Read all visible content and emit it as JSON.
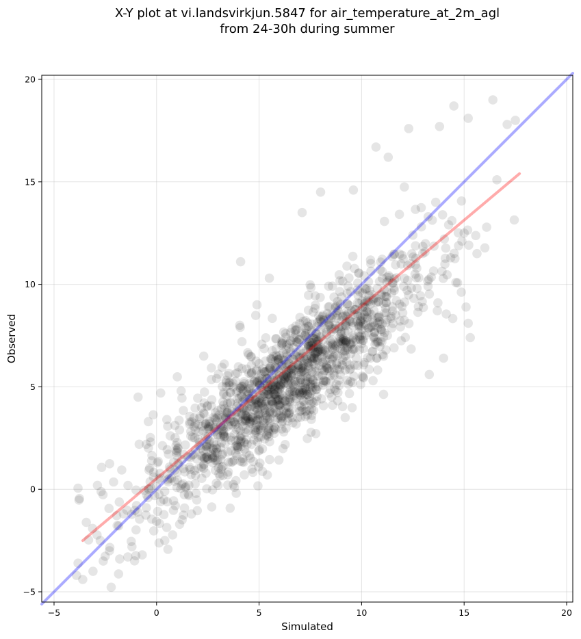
{
  "chart_data": {
    "type": "scatter",
    "title_line1": "X-Y plot at vi.landsvirkjun.5847 for air_temperature_at_2m_agl",
    "title_line2": "from 24-30h during summer",
    "xlabel": "Simulated",
    "ylabel": "Observed",
    "xlim": [
      -5.6,
      20.3
    ],
    "ylim": [
      -5.5,
      20.2
    ],
    "xticks": [
      -5,
      0,
      5,
      10,
      15,
      20
    ],
    "yticks": [
      -5,
      0,
      5,
      10,
      15,
      20
    ],
    "grid": true,
    "point_color": "#000000",
    "point_alpha": 0.1,
    "point_cloud_summary": {
      "approx_count": 1500,
      "x_range": [
        -4,
        18
      ],
      "relation": "observed ≈ 0.78 × simulated + 0.35, with scatter about ±1.5"
    },
    "points_sample": [
      [
        -3.9,
        -4.2
      ],
      [
        -3.6,
        -4.4
      ],
      [
        -3.1,
        -4.0
      ],
      [
        -2.6,
        -3.5
      ],
      [
        -2.3,
        -3.0
      ],
      [
        -1.8,
        -3.4
      ],
      [
        -1.4,
        -3.3
      ],
      [
        -1.2,
        -2.8
      ],
      [
        -0.7,
        -3.2
      ],
      [
        0.4,
        -2.5
      ],
      [
        -0.9,
        4.5
      ],
      [
        -0.4,
        3.3
      ],
      [
        0.2,
        4.7
      ],
      [
        0.5,
        3.4
      ],
      [
        1.2,
        4.8
      ],
      [
        2.3,
        6.5
      ],
      [
        4.1,
        11.1
      ],
      [
        4.9,
        9.0
      ],
      [
        5.5,
        10.3
      ],
      [
        7.1,
        13.5
      ],
      [
        8.0,
        14.5
      ],
      [
        9.6,
        14.6
      ],
      [
        10.7,
        16.7
      ],
      [
        11.3,
        16.2
      ],
      [
        12.3,
        17.6
      ],
      [
        13.8,
        17.7
      ],
      [
        14.5,
        18.7
      ],
      [
        15.2,
        18.1
      ],
      [
        16.4,
        19.0
      ],
      [
        17.5,
        18.0
      ],
      [
        17.1,
        17.8
      ],
      [
        16.6,
        15.1
      ],
      [
        15.0,
        12.5
      ],
      [
        15.2,
        8.1
      ],
      [
        15.3,
        7.4
      ],
      [
        14.0,
        6.4
      ],
      [
        13.3,
        5.6
      ],
      [
        9.2,
        3.5
      ],
      [
        7.6,
        4.3
      ],
      [
        5.4,
        0.7
      ],
      [
        4.2,
        1.5
      ],
      [
        1.7,
        -1.2
      ],
      [
        0.2,
        -0.6
      ],
      [
        -0.5,
        -0.9
      ],
      [
        3.0,
        0.2
      ],
      [
        6.2,
        2.8
      ],
      [
        8.2,
        5.8
      ],
      [
        10.0,
        7.1
      ],
      [
        11.7,
        9.2
      ],
      [
        12.5,
        12.4
      ]
    ],
    "lines": [
      {
        "name": "",
        "color": "#0000ff",
        "alpha": 0.33,
        "x": [
          -5.6,
          20.3
        ],
        "y": [
          -5.6,
          20.3
        ]
      },
      {
        "name": "",
        "color": "#ff0000",
        "alpha": 0.33,
        "x": [
          -3.6,
          17.7
        ],
        "y": [
          -2.5,
          15.4
        ]
      }
    ]
  }
}
